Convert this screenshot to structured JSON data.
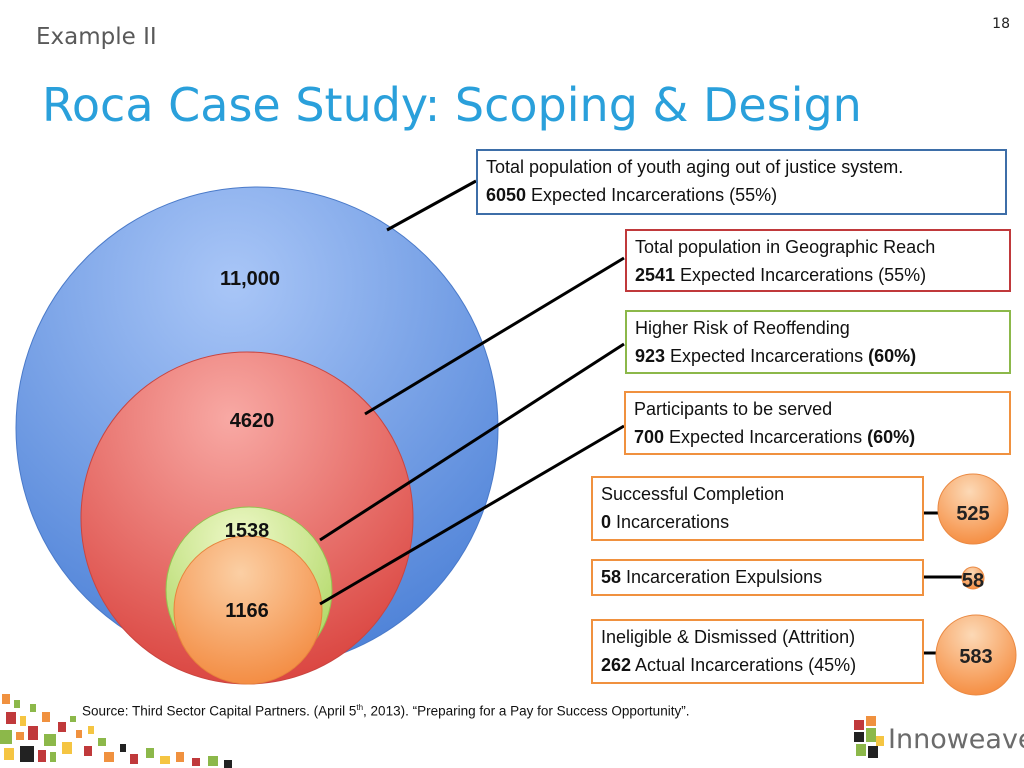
{
  "slide": {
    "number": "18",
    "subtitle": "Example II",
    "title": "Roca Case Study: Scoping & Design"
  },
  "circles": [
    {
      "label": "11,000",
      "color": "#5b8fe0"
    },
    {
      "label": "4620",
      "color": "#e35a55"
    },
    {
      "label": "1538",
      "color": "#c5e57a"
    },
    {
      "label": "1166",
      "color": "#f7a464"
    }
  ],
  "boxes": {
    "youth": {
      "line1": "Total population of youth aging out of justice system.",
      "num": "6050",
      "line2": " Expected Incarcerations (55%)",
      "border": "#3d6ea8"
    },
    "geo": {
      "line1": "Total population in Geographic Reach",
      "num": "2541",
      "line2": " Expected Incarcerations (55%)",
      "border": "#c0393b"
    },
    "risk": {
      "line1": "Higher Risk of Reoffending",
      "num": "923",
      "line2": " Expected Incarcerations ",
      "pct": "(60%)",
      "border": "#8cb84a"
    },
    "participants": {
      "line1": "Participants to be served",
      "num": "700",
      "line2": " Expected Incarcerations ",
      "pct": "(60%)",
      "border": "#f0913f"
    },
    "success": {
      "line1": "Successful Completion",
      "num": "0",
      "line2": " Incarcerations",
      "border": "#f0913f"
    },
    "expulsions": {
      "num": "58",
      "line2": " Incarceration Expulsions",
      "border": "#f0913f"
    },
    "ineligible": {
      "line1": "Ineligible & Dismissed (Attrition)",
      "num": "262",
      "line2": " Actual Incarcerations (45%)",
      "border": "#f0913f"
    }
  },
  "bubbles": [
    {
      "label": "525"
    },
    {
      "label": "58"
    },
    {
      "label": "583"
    }
  ],
  "source": {
    "prefix": "Source: Third Sector Capital Partners. (April 5",
    "sup": "th",
    "suffix": ", 2013). “Preparing for a Pay for Success Opportunity”."
  },
  "logo": {
    "text": "Innoweave"
  }
}
